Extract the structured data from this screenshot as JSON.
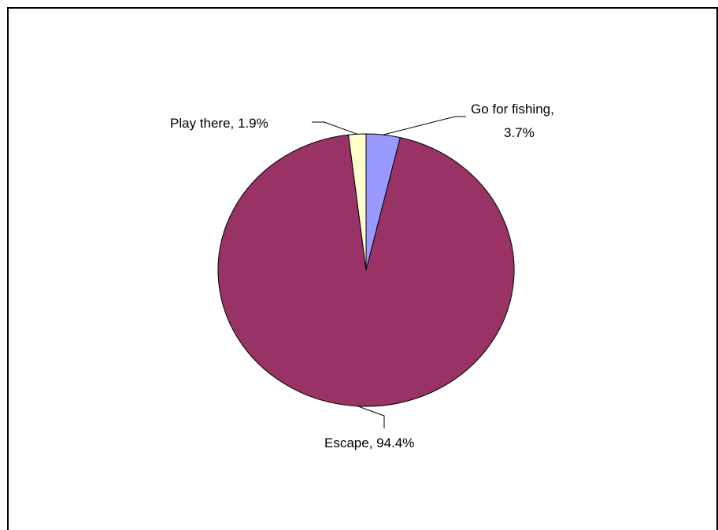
{
  "chart_data": {
    "type": "pie",
    "title": "",
    "slices": [
      {
        "label": "Go for fishing",
        "value": 3.7,
        "display_line1": "Go for fishing,",
        "display_line2": "3.7%",
        "color": "#9999ff"
      },
      {
        "label": "Escape",
        "value": 94.4,
        "display_line1": "Escape, 94.4%",
        "color": "#993366"
      },
      {
        "label": "Play there",
        "value": 1.9,
        "display_line1": "Play there, 1.9%",
        "color": "#ffffcc"
      }
    ],
    "start_angle": "12 o'clock",
    "direction": "clockwise",
    "legend": "none",
    "data_labels": "outside with leader lines"
  }
}
